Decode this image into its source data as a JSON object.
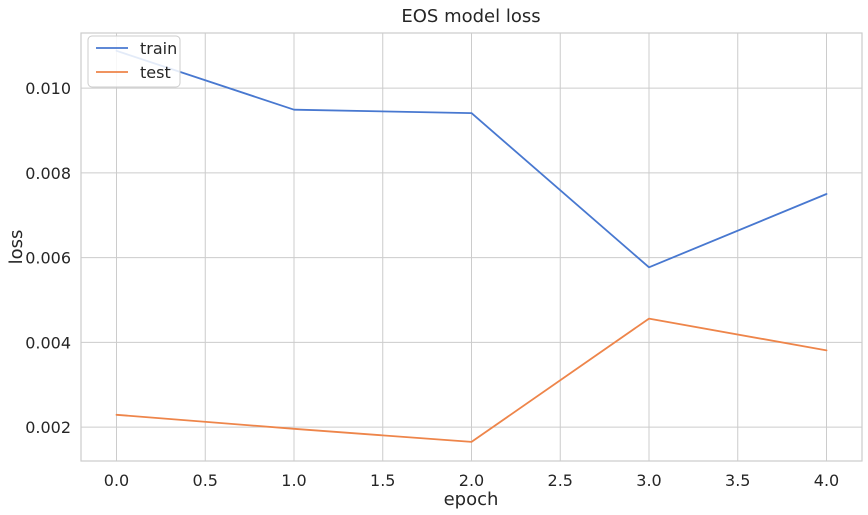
{
  "chart_data": {
    "type": "line",
    "title": "EOS model loss",
    "xlabel": "epoch",
    "ylabel": "loss",
    "x": [
      0.0,
      1.0,
      2.0,
      3.0,
      4.0
    ],
    "xlim": [
      -0.2,
      4.2
    ],
    "ylim": [
      0.0012,
      0.0113
    ],
    "xticks": [
      0.0,
      0.5,
      1.0,
      1.5,
      2.0,
      2.5,
      3.0,
      3.5,
      4.0
    ],
    "xtick_labels": [
      "0.0",
      "0.5",
      "1.0",
      "1.5",
      "2.0",
      "2.5",
      "3.0",
      "3.5",
      "4.0"
    ],
    "yticks": [
      0.002,
      0.004,
      0.006,
      0.008,
      0.01
    ],
    "ytick_labels": [
      "0.002",
      "0.004",
      "0.006",
      "0.008",
      "0.010"
    ],
    "grid": true,
    "legend_position": "top-left",
    "series": [
      {
        "name": "train",
        "color": "#4878d0",
        "values": [
          0.01088,
          0.00949,
          0.00941,
          0.00577,
          0.0075
        ]
      },
      {
        "name": "test",
        "color": "#ee854a",
        "values": [
          0.00229,
          0.00196,
          0.00165,
          0.00456,
          0.00381
        ]
      }
    ]
  }
}
